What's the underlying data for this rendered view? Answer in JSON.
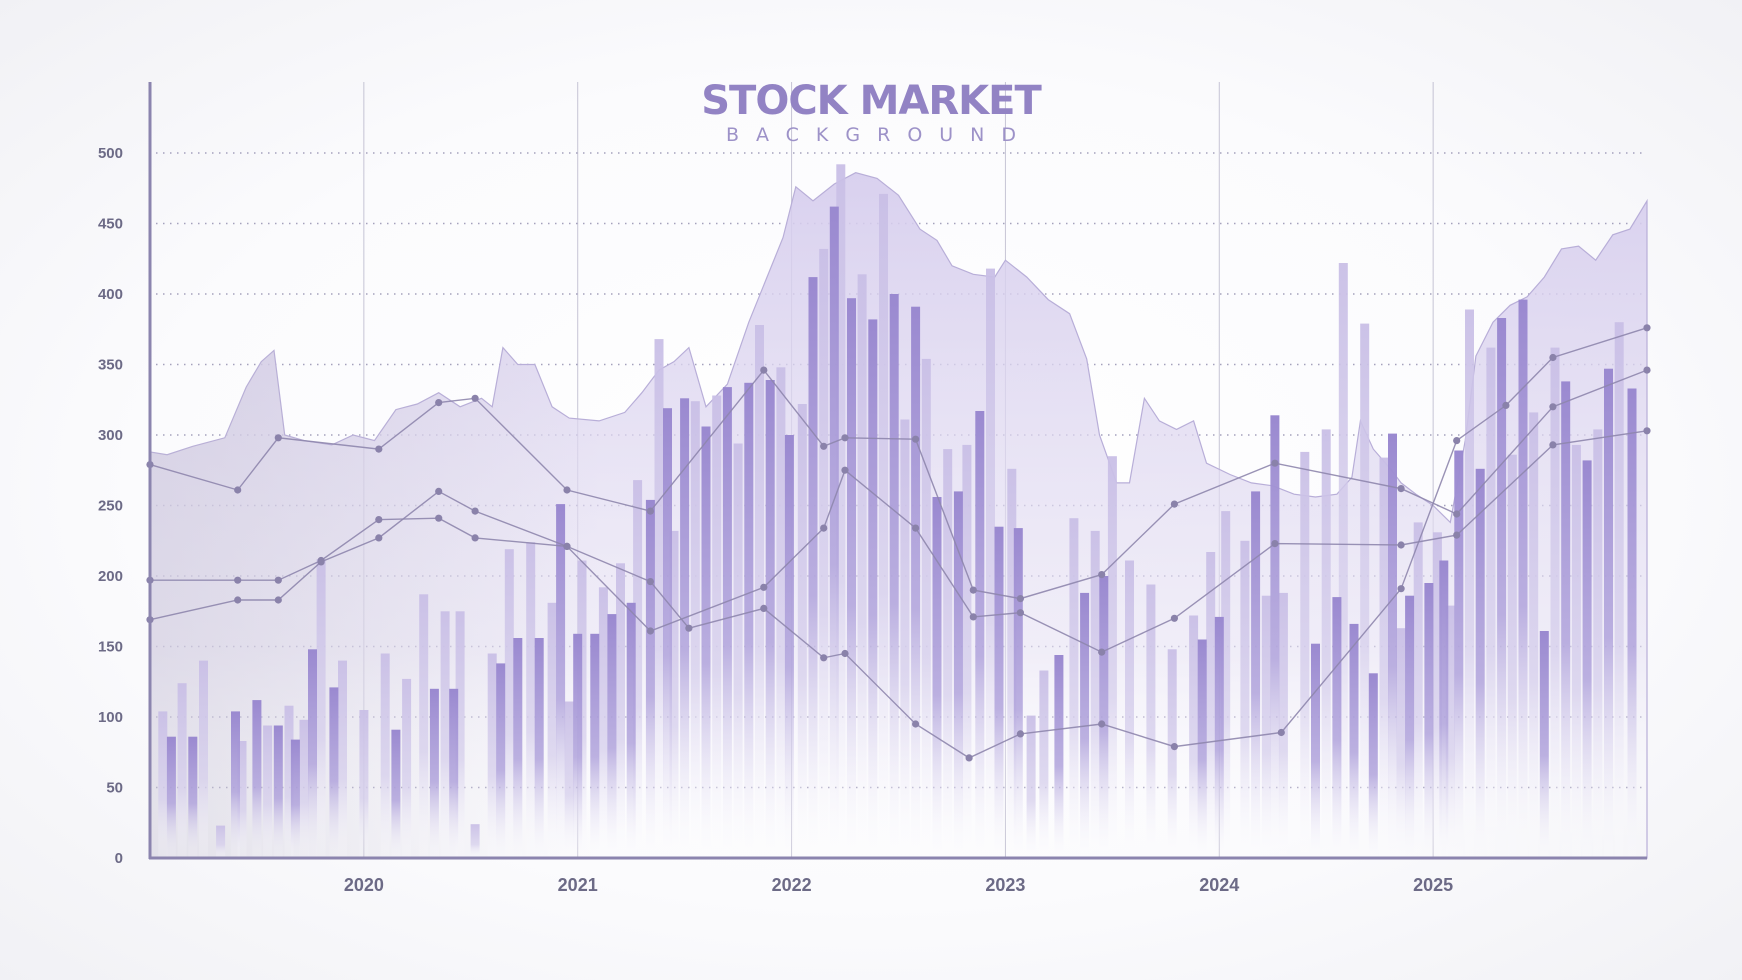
{
  "title": "STOCK MARKET",
  "subtitle": "BACKGROUND",
  "colors": {
    "accent": "#9283c4",
    "bar_light": "#c9bfe6",
    "bar_dark": "#9a89d0",
    "area": "#d7d0ee",
    "line": "#8e86ad",
    "axis": "#8b84ae",
    "grid": "#9a97b5"
  },
  "chart_data": {
    "type": "bar",
    "title": "STOCK MARKET",
    "subtitle": "BACKGROUND",
    "grid": true,
    "ylim": [
      0,
      500
    ],
    "yticks": [
      0,
      50,
      100,
      150,
      200,
      250,
      300,
      350,
      400,
      450,
      500
    ],
    "xticks": [
      "2020",
      "2021",
      "2022",
      "2023",
      "2024",
      "2025"
    ],
    "xlim": [
      2019.0,
      2026.0
    ],
    "bars_light": [
      [
        2019.06,
        104
      ],
      [
        2019.15,
        124
      ],
      [
        2019.25,
        140
      ],
      [
        2019.33,
        23
      ],
      [
        2019.43,
        83
      ],
      [
        2019.55,
        94
      ],
      [
        2019.65,
        108
      ],
      [
        2019.72,
        98
      ],
      [
        2019.8,
        212
      ],
      [
        2019.9,
        140
      ],
      [
        2020.0,
        105
      ],
      [
        2020.1,
        145
      ],
      [
        2020.2,
        127
      ],
      [
        2020.28,
        187
      ],
      [
        2020.38,
        175
      ],
      [
        2020.45,
        175
      ],
      [
        2020.52,
        24
      ],
      [
        2020.6,
        145
      ],
      [
        2020.68,
        219
      ],
      [
        2020.78,
        224
      ],
      [
        2020.88,
        181
      ],
      [
        2020.96,
        111
      ],
      [
        2021.02,
        211
      ],
      [
        2021.12,
        192
      ],
      [
        2021.2,
        209
      ],
      [
        2021.28,
        268
      ],
      [
        2021.38,
        368
      ],
      [
        2021.45,
        232
      ],
      [
        2021.55,
        324
      ],
      [
        2021.65,
        328
      ],
      [
        2021.75,
        294
      ],
      [
        2021.85,
        378
      ],
      [
        2021.95,
        348
      ],
      [
        2022.05,
        322
      ],
      [
        2022.15,
        432
      ],
      [
        2022.23,
        492
      ],
      [
        2022.33,
        414
      ],
      [
        2022.43,
        471
      ],
      [
        2022.53,
        311
      ],
      [
        2022.63,
        354
      ],
      [
        2022.73,
        290
      ],
      [
        2022.82,
        293
      ],
      [
        2022.93,
        418
      ],
      [
        2023.03,
        276
      ],
      [
        2023.12,
        101
      ],
      [
        2023.18,
        133
      ],
      [
        2023.32,
        241
      ],
      [
        2023.42,
        232
      ],
      [
        2023.5,
        285
      ],
      [
        2023.58,
        211
      ],
      [
        2023.68,
        194
      ],
      [
        2023.78,
        148
      ],
      [
        2023.88,
        172
      ],
      [
        2023.96,
        217
      ],
      [
        2024.03,
        246
      ],
      [
        2024.12,
        225
      ],
      [
        2024.22,
        186
      ],
      [
        2024.3,
        188
      ],
      [
        2024.4,
        288
      ],
      [
        2024.5,
        304
      ],
      [
        2024.58,
        422
      ],
      [
        2024.68,
        379
      ],
      [
        2024.77,
        284
      ],
      [
        2024.85,
        163
      ],
      [
        2024.93,
        238
      ],
      [
        2025.02,
        231
      ],
      [
        2025.08,
        179
      ],
      [
        2025.17,
        389
      ],
      [
        2025.27,
        362
      ],
      [
        2025.37,
        286
      ],
      [
        2025.47,
        316
      ],
      [
        2025.57,
        362
      ],
      [
        2025.67,
        293
      ],
      [
        2025.77,
        304
      ],
      [
        2025.87,
        380
      ]
    ],
    "bars_dark": [
      [
        2019.1,
        86
      ],
      [
        2019.2,
        86
      ],
      [
        2019.4,
        104
      ],
      [
        2019.5,
        112
      ],
      [
        2019.6,
        94
      ],
      [
        2019.68,
        84
      ],
      [
        2019.76,
        148
      ],
      [
        2019.86,
        121
      ],
      [
        2020.15,
        91
      ],
      [
        2020.33,
        120
      ],
      [
        2020.42,
        120
      ],
      [
        2020.64,
        138
      ],
      [
        2020.72,
        156
      ],
      [
        2020.82,
        156
      ],
      [
        2020.92,
        251
      ],
      [
        2021.0,
        159
      ],
      [
        2021.08,
        159
      ],
      [
        2021.16,
        173
      ],
      [
        2021.25,
        181
      ],
      [
        2021.34,
        254
      ],
      [
        2021.42,
        319
      ],
      [
        2021.5,
        326
      ],
      [
        2021.6,
        306
      ],
      [
        2021.7,
        334
      ],
      [
        2021.8,
        337
      ],
      [
        2021.9,
        339
      ],
      [
        2021.99,
        300
      ],
      [
        2022.1,
        412
      ],
      [
        2022.2,
        462
      ],
      [
        2022.28,
        397
      ],
      [
        2022.38,
        382
      ],
      [
        2022.48,
        400
      ],
      [
        2022.58,
        391
      ],
      [
        2022.68,
        256
      ],
      [
        2022.78,
        260
      ],
      [
        2022.88,
        317
      ],
      [
        2022.97,
        235
      ],
      [
        2023.06,
        234
      ],
      [
        2023.25,
        144
      ],
      [
        2023.37,
        188
      ],
      [
        2023.46,
        200
      ],
      [
        2023.92,
        155
      ],
      [
        2024.0,
        171
      ],
      [
        2024.17,
        260
      ],
      [
        2024.26,
        314
      ],
      [
        2024.45,
        152
      ],
      [
        2024.55,
        185
      ],
      [
        2024.63,
        166
      ],
      [
        2024.72,
        131
      ],
      [
        2024.81,
        301
      ],
      [
        2024.89,
        186
      ],
      [
        2024.98,
        195
      ],
      [
        2025.05,
        211
      ],
      [
        2025.12,
        289
      ],
      [
        2025.22,
        276
      ],
      [
        2025.32,
        383
      ],
      [
        2025.42,
        396
      ],
      [
        2025.52,
        161
      ],
      [
        2025.62,
        338
      ],
      [
        2025.72,
        282
      ],
      [
        2025.82,
        347
      ],
      [
        2025.93,
        333
      ]
    ],
    "area": [
      [
        2019.0,
        288
      ],
      [
        2019.08,
        286
      ],
      [
        2019.2,
        292
      ],
      [
        2019.35,
        298
      ],
      [
        2019.45,
        334
      ],
      [
        2019.52,
        352
      ],
      [
        2019.58,
        360
      ],
      [
        2019.63,
        300
      ],
      [
        2019.72,
        296
      ],
      [
        2019.85,
        293
      ],
      [
        2019.95,
        300
      ],
      [
        2020.05,
        296
      ],
      [
        2020.15,
        318
      ],
      [
        2020.25,
        322
      ],
      [
        2020.35,
        330
      ],
      [
        2020.45,
        320
      ],
      [
        2020.55,
        326
      ],
      [
        2020.6,
        320
      ],
      [
        2020.65,
        362
      ],
      [
        2020.72,
        350
      ],
      [
        2020.8,
        350
      ],
      [
        2020.88,
        320
      ],
      [
        2020.96,
        312
      ],
      [
        2021.1,
        310
      ],
      [
        2021.22,
        316
      ],
      [
        2021.3,
        330
      ],
      [
        2021.38,
        346
      ],
      [
        2021.45,
        352
      ],
      [
        2021.52,
        362
      ],
      [
        2021.6,
        320
      ],
      [
        2021.7,
        336
      ],
      [
        2021.8,
        380
      ],
      [
        2021.88,
        410
      ],
      [
        2021.96,
        440
      ],
      [
        2022.02,
        476
      ],
      [
        2022.1,
        466
      ],
      [
        2022.2,
        478
      ],
      [
        2022.3,
        486
      ],
      [
        2022.4,
        482
      ],
      [
        2022.5,
        470
      ],
      [
        2022.6,
        446
      ],
      [
        2022.68,
        438
      ],
      [
        2022.75,
        420
      ],
      [
        2022.85,
        414
      ],
      [
        2022.95,
        412
      ],
      [
        2023.0,
        424
      ],
      [
        2023.1,
        412
      ],
      [
        2023.2,
        396
      ],
      [
        2023.3,
        386
      ],
      [
        2023.38,
        354
      ],
      [
        2023.44,
        300
      ],
      [
        2023.52,
        266
      ],
      [
        2023.58,
        266
      ],
      [
        2023.65,
        326
      ],
      [
        2023.72,
        310
      ],
      [
        2023.8,
        304
      ],
      [
        2023.88,
        310
      ],
      [
        2023.94,
        280
      ],
      [
        2024.05,
        272
      ],
      [
        2024.15,
        266
      ],
      [
        2024.25,
        264
      ],
      [
        2024.35,
        258
      ],
      [
        2024.45,
        256
      ],
      [
        2024.55,
        258
      ],
      [
        2024.62,
        270
      ],
      [
        2024.66,
        310
      ],
      [
        2024.72,
        290
      ],
      [
        2024.8,
        276
      ],
      [
        2024.85,
        266
      ],
      [
        2024.92,
        258
      ],
      [
        2025.0,
        250
      ],
      [
        2025.08,
        238
      ],
      [
        2025.15,
        296
      ],
      [
        2025.2,
        356
      ],
      [
        2025.28,
        380
      ],
      [
        2025.36,
        392
      ],
      [
        2025.44,
        398
      ],
      [
        2025.52,
        412
      ],
      [
        2025.6,
        432
      ],
      [
        2025.68,
        434
      ],
      [
        2025.76,
        424
      ],
      [
        2025.84,
        442
      ],
      [
        2025.92,
        446
      ],
      [
        2026.0,
        466
      ]
    ],
    "series": [
      {
        "points": [
          [
            2019.0,
            279
          ],
          [
            2019.41,
            261
          ],
          [
            2019.6,
            298
          ],
          [
            2020.07,
            290
          ],
          [
            2020.35,
            323
          ],
          [
            2020.52,
            326
          ],
          [
            2020.95,
            261
          ],
          [
            2021.34,
            246
          ],
          [
            2021.87,
            346
          ],
          [
            2022.15,
            292
          ],
          [
            2022.25,
            298
          ],
          [
            2022.58,
            297
          ],
          [
            2022.85,
            190
          ],
          [
            2023.07,
            184
          ],
          [
            2023.45,
            201
          ],
          [
            2023.79,
            251
          ],
          [
            2024.26,
            280
          ],
          [
            2024.85,
            262
          ],
          [
            2025.11,
            244
          ],
          [
            2025.56,
            320
          ],
          [
            2026.0,
            346
          ]
        ]
      },
      {
        "points": [
          [
            2019.0,
            197
          ],
          [
            2019.41,
            197
          ],
          [
            2019.6,
            197
          ],
          [
            2019.8,
            211
          ],
          [
            2020.07,
            240
          ],
          [
            2020.35,
            241
          ],
          [
            2020.52,
            227
          ],
          [
            2020.95,
            221
          ],
          [
            2021.34,
            161
          ],
          [
            2021.87,
            192
          ],
          [
            2022.15,
            234
          ],
          [
            2022.25,
            275
          ],
          [
            2022.58,
            234
          ],
          [
            2022.85,
            171
          ],
          [
            2023.07,
            174
          ],
          [
            2023.45,
            146
          ],
          [
            2023.79,
            170
          ],
          [
            2024.26,
            223
          ],
          [
            2024.85,
            222
          ],
          [
            2025.11,
            229
          ],
          [
            2025.56,
            293
          ],
          [
            2026.0,
            303
          ]
        ]
      },
      {
        "points": [
          [
            2019.0,
            169
          ],
          [
            2019.41,
            183
          ],
          [
            2019.6,
            183
          ],
          [
            2019.8,
            210
          ],
          [
            2020.07,
            227
          ],
          [
            2020.35,
            260
          ],
          [
            2020.52,
            246
          ],
          [
            2020.95,
            221
          ],
          [
            2021.34,
            196
          ],
          [
            2021.52,
            163
          ],
          [
            2021.87,
            177
          ],
          [
            2022.15,
            142
          ],
          [
            2022.25,
            145
          ],
          [
            2022.58,
            95
          ],
          [
            2022.83,
            71
          ],
          [
            2023.07,
            88
          ],
          [
            2023.45,
            95
          ],
          [
            2023.79,
            79
          ],
          [
            2024.29,
            89
          ],
          [
            2024.85,
            191
          ],
          [
            2025.11,
            296
          ],
          [
            2025.34,
            321
          ],
          [
            2025.56,
            355
          ],
          [
            2026.0,
            376
          ]
        ]
      }
    ]
  }
}
